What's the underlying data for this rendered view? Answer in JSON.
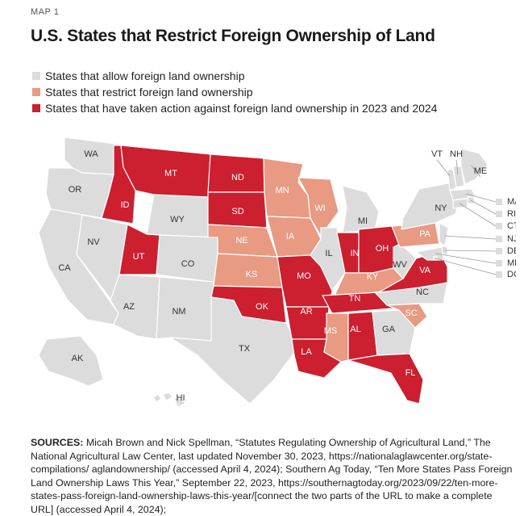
{
  "kicker": "MAP 1",
  "title": "U.S. States that Restrict Foreign Ownership of Land",
  "colors": {
    "allow": "#dcdcdc",
    "restrict": "#e89a82",
    "action": "#cc1f2f",
    "border": "#ffffff",
    "leader": "#999999"
  },
  "legend": [
    {
      "label": "States that allow foreign land ownership",
      "category": "allow"
    },
    {
      "label": "States that restrict foreign land ownership",
      "category": "restrict"
    },
    {
      "label": "States that have taken action against foreign land ownership in 2023 and 2024",
      "category": "action"
    }
  ],
  "states": [
    {
      "abbr": "WA",
      "category": "allow"
    },
    {
      "abbr": "OR",
      "category": "allow"
    },
    {
      "abbr": "CA",
      "category": "allow"
    },
    {
      "abbr": "NV",
      "category": "allow"
    },
    {
      "abbr": "ID",
      "category": "action"
    },
    {
      "abbr": "MT",
      "category": "action"
    },
    {
      "abbr": "WY",
      "category": "allow"
    },
    {
      "abbr": "UT",
      "category": "action"
    },
    {
      "abbr": "CO",
      "category": "allow"
    },
    {
      "abbr": "AZ",
      "category": "allow"
    },
    {
      "abbr": "NM",
      "category": "allow"
    },
    {
      "abbr": "ND",
      "category": "action"
    },
    {
      "abbr": "SD",
      "category": "action"
    },
    {
      "abbr": "NE",
      "category": "restrict"
    },
    {
      "abbr": "KS",
      "category": "restrict"
    },
    {
      "abbr": "OK",
      "category": "action"
    },
    {
      "abbr": "TX",
      "category": "allow"
    },
    {
      "abbr": "MN",
      "category": "restrict"
    },
    {
      "abbr": "IA",
      "category": "restrict"
    },
    {
      "abbr": "MO",
      "category": "action"
    },
    {
      "abbr": "AR",
      "category": "action"
    },
    {
      "abbr": "LA",
      "category": "action"
    },
    {
      "abbr": "WI",
      "category": "restrict"
    },
    {
      "abbr": "IL",
      "category": "allow"
    },
    {
      "abbr": "MI",
      "category": "allow"
    },
    {
      "abbr": "IN",
      "category": "action"
    },
    {
      "abbr": "OH",
      "category": "action"
    },
    {
      "abbr": "KY",
      "category": "restrict"
    },
    {
      "abbr": "TN",
      "category": "action"
    },
    {
      "abbr": "MS",
      "category": "restrict"
    },
    {
      "abbr": "AL",
      "category": "action"
    },
    {
      "abbr": "GA",
      "category": "allow"
    },
    {
      "abbr": "FL",
      "category": "action"
    },
    {
      "abbr": "SC",
      "category": "restrict"
    },
    {
      "abbr": "NC",
      "category": "allow"
    },
    {
      "abbr": "VA",
      "category": "action"
    },
    {
      "abbr": "WV",
      "category": "allow"
    },
    {
      "abbr": "PA",
      "category": "restrict"
    },
    {
      "abbr": "NY",
      "category": "allow"
    },
    {
      "abbr": "VT",
      "category": "allow"
    },
    {
      "abbr": "NH",
      "category": "allow"
    },
    {
      "abbr": "ME",
      "category": "allow"
    },
    {
      "abbr": "MA",
      "category": "allow"
    },
    {
      "abbr": "RI",
      "category": "allow"
    },
    {
      "abbr": "CT",
      "category": "allow"
    },
    {
      "abbr": "NJ",
      "category": "allow"
    },
    {
      "abbr": "DE",
      "category": "allow"
    },
    {
      "abbr": "MD",
      "category": "allow"
    },
    {
      "abbr": "DC",
      "category": "allow"
    },
    {
      "abbr": "AK",
      "category": "allow"
    },
    {
      "abbr": "HI",
      "category": "allow"
    }
  ],
  "sources": {
    "label": "SOURCES:",
    "text": " Micah Brown and Nick Spellman, “Statutes Regulating Ownership of Agricultural Land,” The National Agricultural Law Center, last updated November 30, 2023, https://nationalaglawcenter.org/state-compilations/ aglandownership/ (accessed April 4, 2024); Southern Ag Today, “Ten More States Pass Foreign Land Ownership Laws This Year,” September 22, 2023, https://southernagtoday.org/2023/09/22/ten-more-states-pass-foreign-land-ownership-laws-this-year/[connect the two parts of the URL to make a complete URL] (accessed April 4, 2024);"
  }
}
